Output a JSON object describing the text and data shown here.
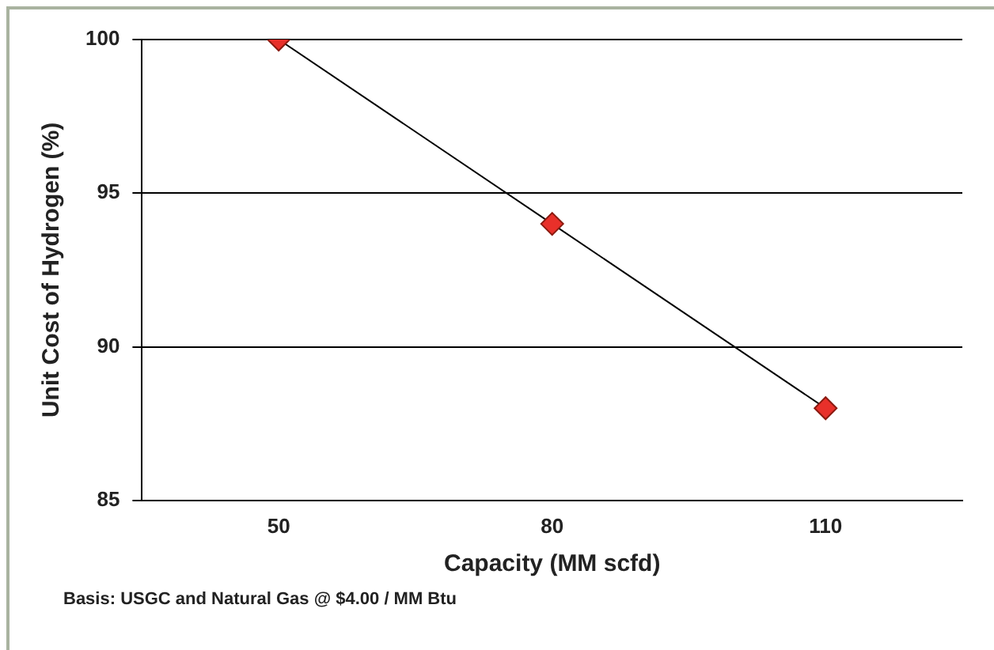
{
  "chart_data": {
    "type": "line",
    "xlabel": "Capacity (MM scfd)",
    "ylabel": "Unit Cost of Hydrogen (%)",
    "categories": [
      "50",
      "80",
      "110"
    ],
    "series": [
      {
        "color": "#000000",
        "values": [
          100,
          94,
          88
        ]
      }
    ],
    "marker": "diamond",
    "ylim": [
      85,
      100
    ],
    "yticks": [
      85,
      90,
      95,
      100
    ],
    "grid": "y",
    "legend": false,
    "annotations": [
      "Basis: USGC and Natural Gas @ $4.00 / MM Btu"
    ]
  }
}
